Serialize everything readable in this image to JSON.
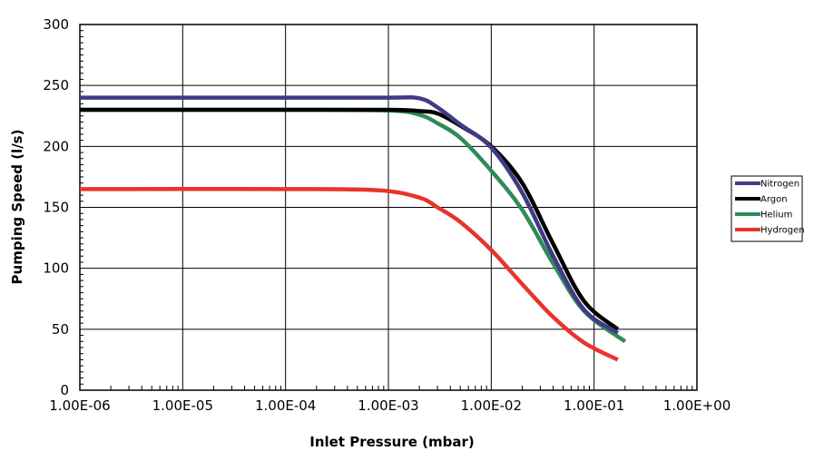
{
  "chart_data": {
    "type": "line",
    "title": "",
    "xlabel": "Inlet Pressure (mbar)",
    "ylabel": "Pumping Speed (l/s)",
    "x_scale": "log",
    "xlim": [
      1e-06,
      1
    ],
    "ylim": [
      0,
      300
    ],
    "grid": true,
    "legend_position": "right",
    "x_ticks": [
      "1.00E-06",
      "1.00E-05",
      "1.00E-04",
      "1.00E-03",
      "1.00E-02",
      "1.00E-01",
      "1.00E+00"
    ],
    "y_ticks": [
      "0",
      "50",
      "100",
      "150",
      "200",
      "250",
      "300"
    ],
    "series": [
      {
        "name": "Nitrogen",
        "color": "#3f3a86",
        "points": [
          [
            1e-06,
            240
          ],
          [
            0.0001,
            240
          ],
          [
            0.001,
            240
          ],
          [
            0.002,
            239.5
          ],
          [
            0.003,
            232
          ],
          [
            0.005,
            218
          ],
          [
            0.01,
            199
          ],
          [
            0.02,
            162
          ],
          [
            0.04,
            110
          ],
          [
            0.08,
            66
          ],
          [
            0.17,
            47
          ]
        ]
      },
      {
        "name": "Argon",
        "color": "#000000",
        "points": [
          [
            1e-06,
            230
          ],
          [
            0.0001,
            230
          ],
          [
            0.001,
            230
          ],
          [
            0.002,
            229
          ],
          [
            0.003,
            227
          ],
          [
            0.005,
            217
          ],
          [
            0.01,
            200
          ],
          [
            0.02,
            170
          ],
          [
            0.04,
            120
          ],
          [
            0.08,
            73
          ],
          [
            0.17,
            50
          ]
        ]
      },
      {
        "name": "Helium",
        "color": "#2e8b57",
        "points": [
          [
            1e-06,
            230
          ],
          [
            0.0001,
            230
          ],
          [
            0.001,
            229.5
          ],
          [
            0.002,
            226
          ],
          [
            0.003,
            219
          ],
          [
            0.005,
            207
          ],
          [
            0.01,
            180
          ],
          [
            0.02,
            148
          ],
          [
            0.04,
            104
          ],
          [
            0.08,
            65
          ],
          [
            0.2,
            40
          ]
        ]
      },
      {
        "name": "Hydrogen",
        "color": "#e8342b",
        "points": [
          [
            1e-06,
            165
          ],
          [
            0.0001,
            165
          ],
          [
            0.0008,
            164
          ],
          [
            0.002,
            158
          ],
          [
            0.003,
            150
          ],
          [
            0.005,
            138
          ],
          [
            0.01,
            115
          ],
          [
            0.02,
            87
          ],
          [
            0.04,
            60
          ],
          [
            0.08,
            39
          ],
          [
            0.17,
            25
          ]
        ]
      }
    ]
  }
}
